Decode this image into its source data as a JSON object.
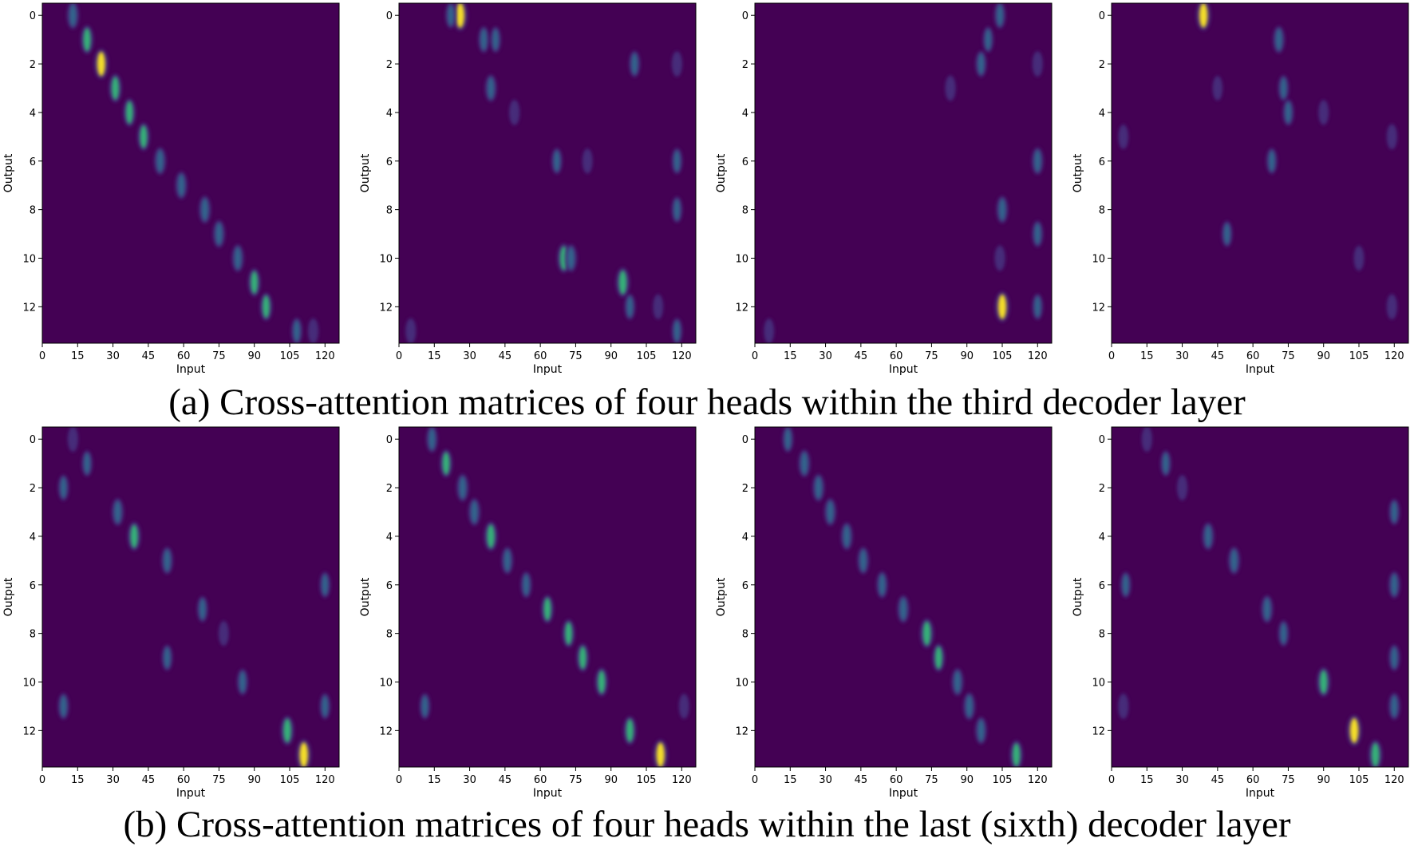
{
  "captions": {
    "a": "(a) Cross-attention matrices of four heads within the third decoder layer",
    "b": "(b) Cross-attention matrices of four heads within the last (sixth) decoder layer"
  },
  "colors": {
    "background": "#440154",
    "low": "#472d7b",
    "mid": "#31688e",
    "high": "#35b779",
    "peak": "#fde725"
  },
  "chart_data": [
    {
      "type": "heatmap",
      "row": "a",
      "head": 1,
      "xlabel": "Input",
      "ylabel": "Output",
      "xlim": [
        0,
        126
      ],
      "ylim": [
        13.5,
        -0.5
      ],
      "xticks": [
        0,
        15,
        30,
        45,
        60,
        75,
        90,
        105,
        120
      ],
      "yticks": [
        0,
        2,
        4,
        6,
        8,
        10,
        12
      ],
      "peaks": [
        {
          "x": 13,
          "y": 0,
          "v": 0.5
        },
        {
          "x": 19,
          "y": 1,
          "v": 0.6
        },
        {
          "x": 25,
          "y": 2,
          "v": 0.8
        },
        {
          "x": 31,
          "y": 3,
          "v": 0.6
        },
        {
          "x": 37,
          "y": 4,
          "v": 0.55
        },
        {
          "x": 43,
          "y": 5,
          "v": 0.55
        },
        {
          "x": 50,
          "y": 6,
          "v": 0.5
        },
        {
          "x": 59,
          "y": 7,
          "v": 0.5
        },
        {
          "x": 69,
          "y": 8,
          "v": 0.5
        },
        {
          "x": 75,
          "y": 9,
          "v": 0.5
        },
        {
          "x": 83,
          "y": 10,
          "v": 0.5
        },
        {
          "x": 90,
          "y": 11,
          "v": 0.55
        },
        {
          "x": 95,
          "y": 12,
          "v": 0.55
        },
        {
          "x": 108,
          "y": 13,
          "v": 0.35
        },
        {
          "x": 115,
          "y": 13,
          "v": 0.25
        }
      ]
    },
    {
      "type": "heatmap",
      "row": "a",
      "head": 2,
      "xlabel": "Input",
      "ylabel": "Output",
      "xlim": [
        0,
        126
      ],
      "ylim": [
        13.5,
        -0.5
      ],
      "xticks": [
        0,
        15,
        30,
        45,
        60,
        75,
        90,
        105,
        120
      ],
      "yticks": [
        0,
        2,
        4,
        6,
        8,
        10,
        12
      ],
      "peaks": [
        {
          "x": 26,
          "y": 0,
          "v": 0.9
        },
        {
          "x": 22,
          "y": 0,
          "v": 0.3
        },
        {
          "x": 36,
          "y": 1,
          "v": 0.35
        },
        {
          "x": 41,
          "y": 1,
          "v": 0.3
        },
        {
          "x": 39,
          "y": 3,
          "v": 0.45
        },
        {
          "x": 49,
          "y": 4,
          "v": 0.25
        },
        {
          "x": 67,
          "y": 6,
          "v": 0.3
        },
        {
          "x": 80,
          "y": 6,
          "v": 0.2
        },
        {
          "x": 70,
          "y": 10,
          "v": 0.7
        },
        {
          "x": 73,
          "y": 10,
          "v": 0.5
        },
        {
          "x": 95,
          "y": 11,
          "v": 0.75
        },
        {
          "x": 98,
          "y": 12,
          "v": 0.3
        },
        {
          "x": 100,
          "y": 2,
          "v": 0.35
        },
        {
          "x": 118,
          "y": 2,
          "v": 0.25
        },
        {
          "x": 118,
          "y": 6,
          "v": 0.3
        },
        {
          "x": 118,
          "y": 8,
          "v": 0.3
        },
        {
          "x": 118,
          "y": 13,
          "v": 0.3
        },
        {
          "x": 5,
          "y": 13,
          "v": 0.25
        },
        {
          "x": 110,
          "y": 12,
          "v": 0.2
        }
      ]
    },
    {
      "type": "heatmap",
      "row": "a",
      "head": 3,
      "xlabel": "Input",
      "ylabel": "Output",
      "xlim": [
        0,
        126
      ],
      "ylim": [
        13.5,
        -0.5
      ],
      "xticks": [
        0,
        15,
        30,
        45,
        60,
        75,
        90,
        105,
        120
      ],
      "yticks": [
        0,
        2,
        4,
        6,
        8,
        10,
        12
      ],
      "peaks": [
        {
          "x": 104,
          "y": 0,
          "v": 0.4
        },
        {
          "x": 99,
          "y": 1,
          "v": 0.3
        },
        {
          "x": 96,
          "y": 2,
          "v": 0.35
        },
        {
          "x": 83,
          "y": 3,
          "v": 0.25
        },
        {
          "x": 105,
          "y": 8,
          "v": 0.45
        },
        {
          "x": 104,
          "y": 10,
          "v": 0.25
        },
        {
          "x": 105,
          "y": 12,
          "v": 0.85
        },
        {
          "x": 120,
          "y": 6,
          "v": 0.45
        },
        {
          "x": 120,
          "y": 2,
          "v": 0.25
        },
        {
          "x": 120,
          "y": 9,
          "v": 0.35
        },
        {
          "x": 120,
          "y": 12,
          "v": 0.3
        },
        {
          "x": 6,
          "y": 13,
          "v": 0.2
        }
      ]
    },
    {
      "type": "heatmap",
      "row": "a",
      "head": 4,
      "xlabel": "Input",
      "ylabel": "Output",
      "xlim": [
        0,
        126
      ],
      "ylim": [
        13.5,
        -0.5
      ],
      "xticks": [
        0,
        15,
        30,
        45,
        60,
        75,
        90,
        105,
        120
      ],
      "yticks": [
        0,
        2,
        4,
        6,
        8,
        10,
        12
      ],
      "peaks": [
        {
          "x": 39,
          "y": 0,
          "v": 0.85
        },
        {
          "x": 71,
          "y": 1,
          "v": 0.45
        },
        {
          "x": 73,
          "y": 3,
          "v": 0.3
        },
        {
          "x": 75,
          "y": 4,
          "v": 0.35
        },
        {
          "x": 68,
          "y": 6,
          "v": 0.3
        },
        {
          "x": 49,
          "y": 9,
          "v": 0.3
        },
        {
          "x": 90,
          "y": 4,
          "v": 0.2
        },
        {
          "x": 45,
          "y": 3,
          "v": 0.15
        },
        {
          "x": 119,
          "y": 5,
          "v": 0.25
        },
        {
          "x": 119,
          "y": 12,
          "v": 0.25
        },
        {
          "x": 105,
          "y": 10,
          "v": 0.2
        },
        {
          "x": 5,
          "y": 5,
          "v": 0.15
        }
      ]
    },
    {
      "type": "heatmap",
      "row": "b",
      "head": 1,
      "xlabel": "Input",
      "ylabel": "Output",
      "xlim": [
        0,
        126
      ],
      "ylim": [
        13.5,
        -0.5
      ],
      "xticks": [
        0,
        15,
        30,
        45,
        60,
        75,
        90,
        105,
        120
      ],
      "yticks": [
        0,
        2,
        4,
        6,
        8,
        10,
        12
      ],
      "peaks": [
        {
          "x": 13,
          "y": 0,
          "v": 0.25
        },
        {
          "x": 19,
          "y": 1,
          "v": 0.3
        },
        {
          "x": 9,
          "y": 2,
          "v": 0.3
        },
        {
          "x": 32,
          "y": 3,
          "v": 0.5
        },
        {
          "x": 39,
          "y": 4,
          "v": 0.65
        },
        {
          "x": 53,
          "y": 5,
          "v": 0.45
        },
        {
          "x": 68,
          "y": 7,
          "v": 0.3
        },
        {
          "x": 77,
          "y": 8,
          "v": 0.2
        },
        {
          "x": 53,
          "y": 9,
          "v": 0.3
        },
        {
          "x": 85,
          "y": 10,
          "v": 0.35
        },
        {
          "x": 9,
          "y": 11,
          "v": 0.35
        },
        {
          "x": 104,
          "y": 12,
          "v": 0.7
        },
        {
          "x": 111,
          "y": 13,
          "v": 0.9
        },
        {
          "x": 120,
          "y": 6,
          "v": 0.3
        },
        {
          "x": 120,
          "y": 11,
          "v": 0.3
        }
      ]
    },
    {
      "type": "heatmap",
      "row": "b",
      "head": 2,
      "xlabel": "Input",
      "ylabel": "Output",
      "xlim": [
        0,
        126
      ],
      "ylim": [
        13.5,
        -0.5
      ],
      "xticks": [
        0,
        15,
        30,
        45,
        60,
        75,
        90,
        105,
        120
      ],
      "yticks": [
        0,
        2,
        4,
        6,
        8,
        10,
        12
      ],
      "peaks": [
        {
          "x": 14,
          "y": 0,
          "v": 0.4
        },
        {
          "x": 20,
          "y": 1,
          "v": 0.55
        },
        {
          "x": 27,
          "y": 2,
          "v": 0.5
        },
        {
          "x": 32,
          "y": 3,
          "v": 0.5
        },
        {
          "x": 39,
          "y": 4,
          "v": 0.7
        },
        {
          "x": 46,
          "y": 5,
          "v": 0.45
        },
        {
          "x": 54,
          "y": 6,
          "v": 0.35
        },
        {
          "x": 63,
          "y": 7,
          "v": 0.55
        },
        {
          "x": 72,
          "y": 8,
          "v": 0.55
        },
        {
          "x": 78,
          "y": 9,
          "v": 0.55
        },
        {
          "x": 86,
          "y": 10,
          "v": 0.6
        },
        {
          "x": 98,
          "y": 12,
          "v": 0.6
        },
        {
          "x": 111,
          "y": 13,
          "v": 0.85
        },
        {
          "x": 11,
          "y": 11,
          "v": 0.3
        },
        {
          "x": 121,
          "y": 11,
          "v": 0.2
        }
      ]
    },
    {
      "type": "heatmap",
      "row": "b",
      "head": 3,
      "xlabel": "Input",
      "ylabel": "Output",
      "xlim": [
        0,
        126
      ],
      "ylim": [
        13.5,
        -0.5
      ],
      "xticks": [
        0,
        15,
        30,
        45,
        60,
        75,
        90,
        105,
        120
      ],
      "yticks": [
        0,
        2,
        4,
        6,
        8,
        10,
        12
      ],
      "peaks": [
        {
          "x": 14,
          "y": 0,
          "v": 0.35
        },
        {
          "x": 21,
          "y": 1,
          "v": 0.5
        },
        {
          "x": 27,
          "y": 2,
          "v": 0.5
        },
        {
          "x": 32,
          "y": 3,
          "v": 0.5
        },
        {
          "x": 39,
          "y": 4,
          "v": 0.5
        },
        {
          "x": 46,
          "y": 5,
          "v": 0.45
        },
        {
          "x": 54,
          "y": 6,
          "v": 0.4
        },
        {
          "x": 63,
          "y": 7,
          "v": 0.5
        },
        {
          "x": 73,
          "y": 8,
          "v": 0.75
        },
        {
          "x": 78,
          "y": 9,
          "v": 0.55
        },
        {
          "x": 86,
          "y": 10,
          "v": 0.5
        },
        {
          "x": 91,
          "y": 11,
          "v": 0.5
        },
        {
          "x": 96,
          "y": 12,
          "v": 0.45
        },
        {
          "x": 111,
          "y": 13,
          "v": 0.65
        }
      ]
    },
    {
      "type": "heatmap",
      "row": "b",
      "head": 4,
      "xlabel": "Input",
      "ylabel": "Output",
      "xlim": [
        0,
        126
      ],
      "ylim": [
        13.5,
        -0.5
      ],
      "xticks": [
        0,
        15,
        30,
        45,
        60,
        75,
        90,
        105,
        120
      ],
      "yticks": [
        0,
        2,
        4,
        6,
        8,
        10,
        12
      ],
      "peaks": [
        {
          "x": 15,
          "y": 0,
          "v": 0.25
        },
        {
          "x": 23,
          "y": 1,
          "v": 0.3
        },
        {
          "x": 30,
          "y": 2,
          "v": 0.25
        },
        {
          "x": 41,
          "y": 4,
          "v": 0.5
        },
        {
          "x": 52,
          "y": 5,
          "v": 0.5
        },
        {
          "x": 6,
          "y": 6,
          "v": 0.3
        },
        {
          "x": 66,
          "y": 7,
          "v": 0.5
        },
        {
          "x": 73,
          "y": 8,
          "v": 0.3
        },
        {
          "x": 90,
          "y": 10,
          "v": 0.7
        },
        {
          "x": 103,
          "y": 12,
          "v": 0.9
        },
        {
          "x": 112,
          "y": 13,
          "v": 0.75
        },
        {
          "x": 5,
          "y": 11,
          "v": 0.25
        },
        {
          "x": 120,
          "y": 6,
          "v": 0.4
        },
        {
          "x": 120,
          "y": 3,
          "v": 0.3
        },
        {
          "x": 120,
          "y": 9,
          "v": 0.35
        },
        {
          "x": 120,
          "y": 11,
          "v": 0.4
        }
      ]
    }
  ]
}
